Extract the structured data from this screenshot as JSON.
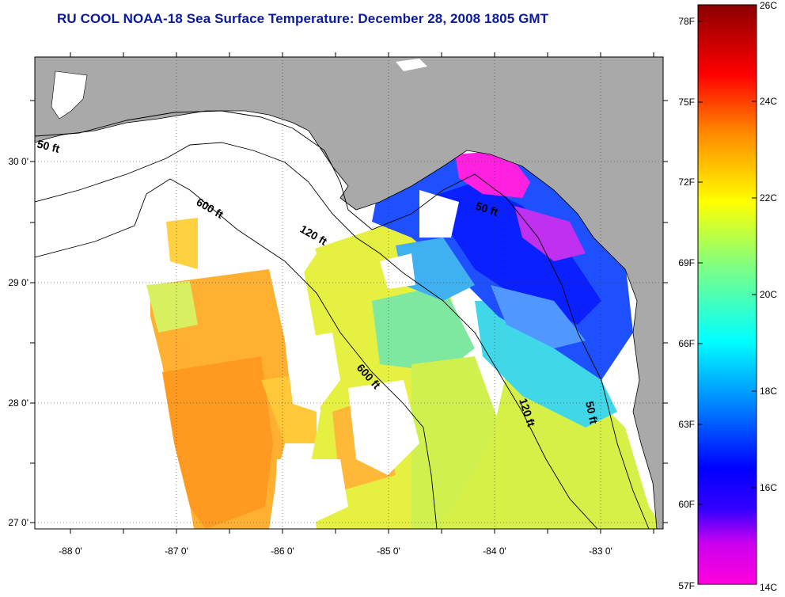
{
  "title": "RU COOL  NOAA-18  Sea Surface Temperature:  December 28, 2008 1805 GMT",
  "map": {
    "lon_ticks": [
      "-88 0'",
      "-87 0'",
      "-86 0'",
      "-85 0'",
      "-84 0'",
      "-83 0'"
    ],
    "lat_ticks": [
      "30 0'",
      "29 0'",
      "28 0'",
      "27 0'"
    ],
    "depth_labels": [
      "50 ft",
      "600 ft",
      "120 ft",
      "50 ft",
      "600 ft",
      "120 ft",
      "50 ft"
    ]
  },
  "colorbar": {
    "fahrenheit": [
      "78F",
      "75F",
      "72F",
      "69F",
      "66F",
      "63F",
      "60F",
      "57F"
    ],
    "celsius": [
      "26C",
      "24C",
      "22C",
      "20C",
      "18C",
      "16C",
      "14C"
    ],
    "colors": [
      "#ff00dd",
      "#0000ff",
      "#00ffff",
      "#ffff00",
      "#ff6600",
      "#ff0000",
      "#8b0000"
    ]
  },
  "colors": {
    "land": "#a9a9a9",
    "cloud": "#ffffff",
    "title": "#0a1aa0"
  }
}
